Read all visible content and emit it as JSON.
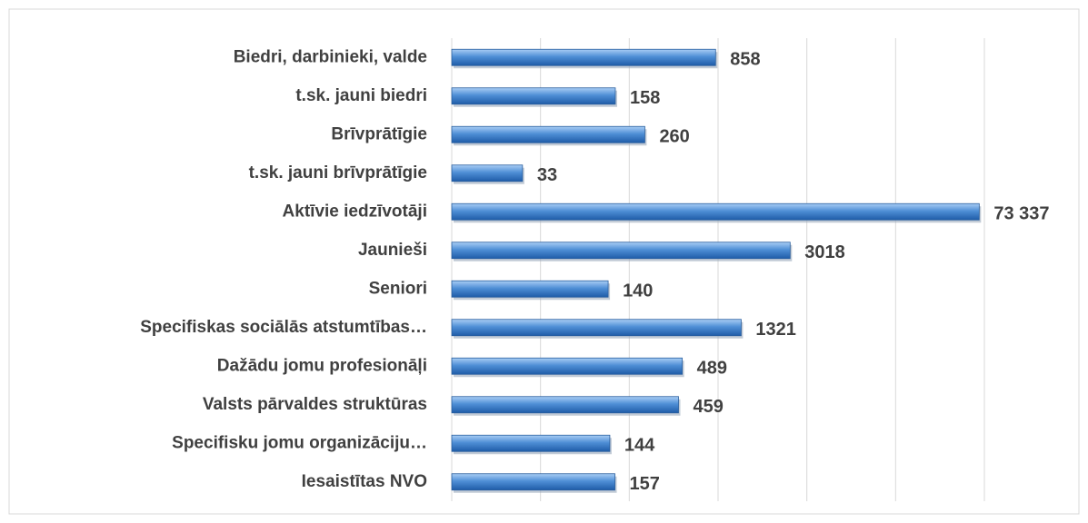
{
  "chart_data": {
    "type": "bar",
    "orientation": "horizontal",
    "categories": [
      "Biedri, darbinieki, valde",
      "t.sk. jauni biedri",
      "Brīvprātīgie",
      "t.sk. jauni brīvprātīgie",
      "Aktīvie iedzīvotāji",
      "Jaunieši",
      "Seniori",
      "Specifiskas sociālās atstumtības…",
      "Dažādu jomu profesionāļi",
      "Valsts pārvaldes struktūras",
      "Specifisku jomu organizāciju…",
      "Iesaistītas NVO"
    ],
    "values": [
      858,
      158,
      260,
      33,
      73337,
      3018,
      140,
      1321,
      489,
      459,
      144,
      157
    ],
    "value_labels": [
      "858",
      "158",
      "260",
      "33",
      "73 337",
      "3018",
      "140",
      "1321",
      "489",
      "459",
      "144",
      "157"
    ],
    "color": "#4f8fd6",
    "xscale": "log",
    "xlim": [
      10,
      80000
    ],
    "grid": true
  }
}
